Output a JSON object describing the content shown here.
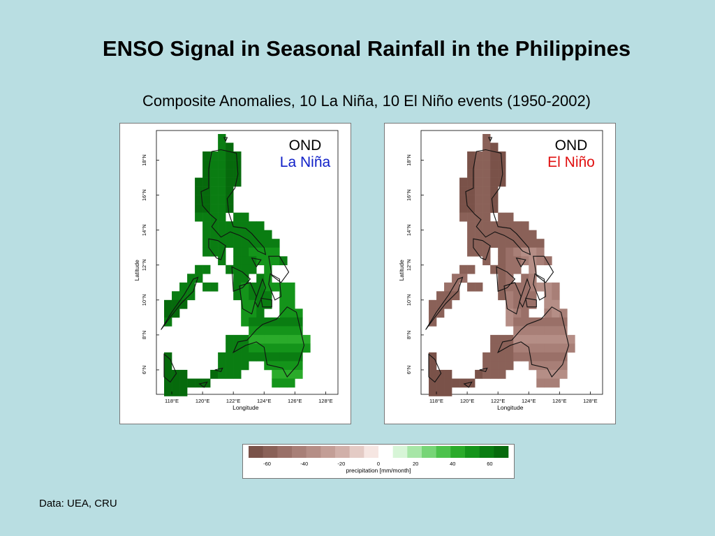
{
  "title": "ENSO Signal in Seasonal Rainfall in the Philippines",
  "subtitle": "Composite Anomalies, 10 La Niña, 10 El Niño events (1950-2002)",
  "source": "Data: UEA, CRU",
  "axes": {
    "xlabel": "Longitude",
    "ylabel": "Latitude",
    "xticks": [
      "118°E",
      "120°E",
      "122°E",
      "124°E",
      "126°E",
      "128°E"
    ],
    "yticks": [
      "6°N",
      "8°N",
      "10°N",
      "12°N",
      "14°N",
      "16°N",
      "18°N"
    ]
  },
  "panels": [
    {
      "id": "lanina",
      "season": "OND",
      "event": "La Niña",
      "event_color": "#1020c8",
      "sign": "positive"
    },
    {
      "id": "elnino",
      "season": "OND",
      "event": "El Niño",
      "event_color": "#e01010",
      "sign": "negative"
    }
  ],
  "colorbar": {
    "label": "precipitation [mm/month]",
    "ticks": [
      "-60",
      "-40",
      "-20",
      "0",
      "20",
      "40",
      "60"
    ],
    "colors": [
      "#7a5249",
      "#8a6158",
      "#9a7068",
      "#a87f77",
      "#b58e86",
      "#c39e96",
      "#d1b0a9",
      "#e4cbc5",
      "#f6e6e2",
      "#ffffff",
      "#d7f5d7",
      "#a7e6a7",
      "#77d577",
      "#4cc24c",
      "#2aab2a",
      "#14941a",
      "#0a7d12",
      "#066a0c"
    ]
  }
}
